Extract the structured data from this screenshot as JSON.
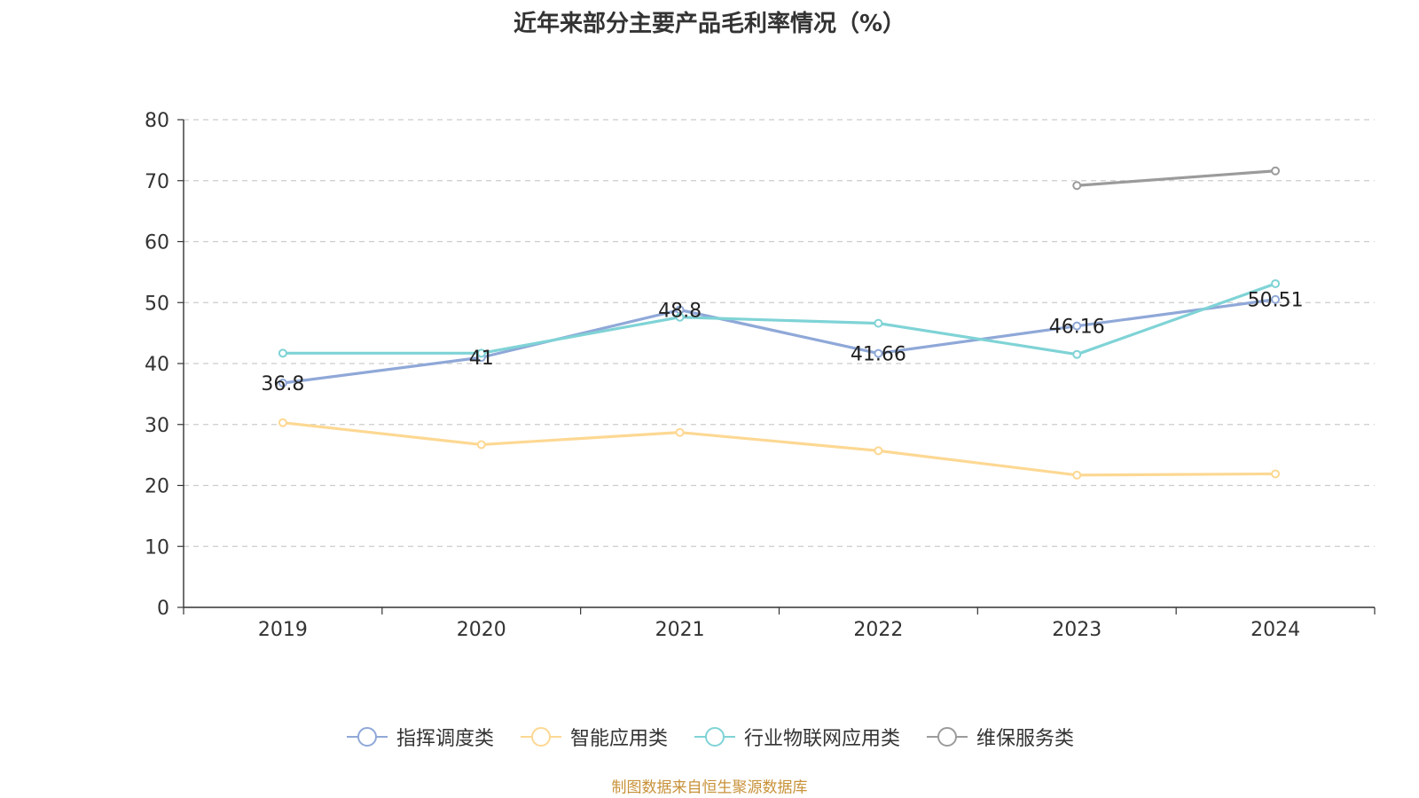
{
  "chart_data": {
    "type": "line",
    "title": "近年来部分主要产品毛利率情况（%）",
    "categories": [
      "2019",
      "2020",
      "2021",
      "2022",
      "2023",
      "2024"
    ],
    "ylim": [
      0,
      80
    ],
    "yticks": [
      0,
      10,
      20,
      30,
      40,
      50,
      60,
      70,
      80
    ],
    "grid": true,
    "legend_position": "bottom",
    "series": [
      {
        "name": "指挥调度类",
        "color": "#8fa8d8",
        "values": [
          36.8,
          41,
          48.8,
          41.66,
          46.16,
          50.51
        ],
        "labels": [
          "36.8",
          "41",
          "48.8",
          "41.66",
          "46.16",
          "50.51"
        ]
      },
      {
        "name": "智能应用类",
        "color": "#fdd893",
        "values": [
          30.3,
          26.7,
          28.7,
          25.7,
          21.7,
          21.9
        ]
      },
      {
        "name": "行业物联网应用类",
        "color": "#7fd3d6",
        "values": [
          41.7,
          41.7,
          47.6,
          46.6,
          41.5,
          53.1
        ]
      },
      {
        "name": "维保服务类",
        "color": "#9b9b9b",
        "values": [
          null,
          null,
          null,
          null,
          69.2,
          71.6
        ]
      }
    ]
  },
  "source": "制图数据来自恒生聚源数据库"
}
